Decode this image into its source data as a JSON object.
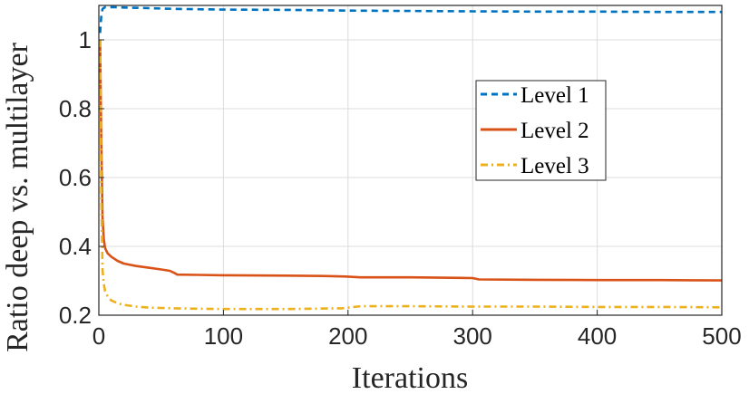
{
  "chart_data": {
    "type": "line",
    "title": "",
    "xlabel": "Iterations",
    "ylabel": "Ratio deep vs. multilayer",
    "xlim": [
      0,
      500
    ],
    "ylim": [
      0.2,
      1.1
    ],
    "xticks": [
      0,
      100,
      200,
      300,
      400,
      500
    ],
    "xtick_labels": [
      "0",
      "100",
      "200",
      "300",
      "400",
      "500"
    ],
    "yticks": [
      0.2,
      0.4,
      0.6,
      0.8,
      1.0
    ],
    "ytick_labels": [
      "0.2",
      "0.4",
      "0.6",
      "0.8",
      "1"
    ],
    "grid": true,
    "legend_position": "center-right",
    "series": [
      {
        "name": "Level 1",
        "color": "#0072BD",
        "style": "dashed",
        "x": [
          1,
          2,
          3,
          5,
          8,
          12,
          20,
          40,
          60,
          100,
          150,
          200,
          250,
          300,
          350,
          400,
          450,
          500
        ],
        "y": [
          1.02,
          1.07,
          1.09,
          1.095,
          1.095,
          1.095,
          1.094,
          1.092,
          1.09,
          1.088,
          1.087,
          1.085,
          1.084,
          1.083,
          1.082,
          1.082,
          1.081,
          1.081
        ]
      },
      {
        "name": "Level 2",
        "color": "#D95319",
        "style": "solid",
        "x": [
          1,
          2,
          3,
          4,
          5,
          7,
          10,
          15,
          20,
          30,
          40,
          50,
          57,
          60,
          63,
          80,
          100,
          150,
          180,
          200,
          210,
          250,
          300,
          305,
          350,
          400,
          450,
          500
        ],
        "y": [
          1.0,
          0.7,
          0.48,
          0.42,
          0.395,
          0.38,
          0.37,
          0.358,
          0.35,
          0.343,
          0.338,
          0.333,
          0.329,
          0.324,
          0.318,
          0.317,
          0.316,
          0.315,
          0.314,
          0.312,
          0.31,
          0.31,
          0.308,
          0.304,
          0.303,
          0.302,
          0.302,
          0.301
        ]
      },
      {
        "name": "Level 3",
        "color": "#EDB120",
        "style": "dashdot",
        "x": [
          1,
          2,
          3,
          4,
          5,
          7,
          10,
          15,
          20,
          30,
          40,
          60,
          80,
          100,
          150,
          195,
          210,
          250,
          300,
          350,
          400,
          450,
          500
        ],
        "y": [
          1.0,
          0.55,
          0.33,
          0.29,
          0.27,
          0.255,
          0.243,
          0.235,
          0.23,
          0.225,
          0.222,
          0.22,
          0.219,
          0.218,
          0.218,
          0.22,
          0.226,
          0.226,
          0.225,
          0.225,
          0.224,
          0.224,
          0.223
        ]
      }
    ]
  }
}
